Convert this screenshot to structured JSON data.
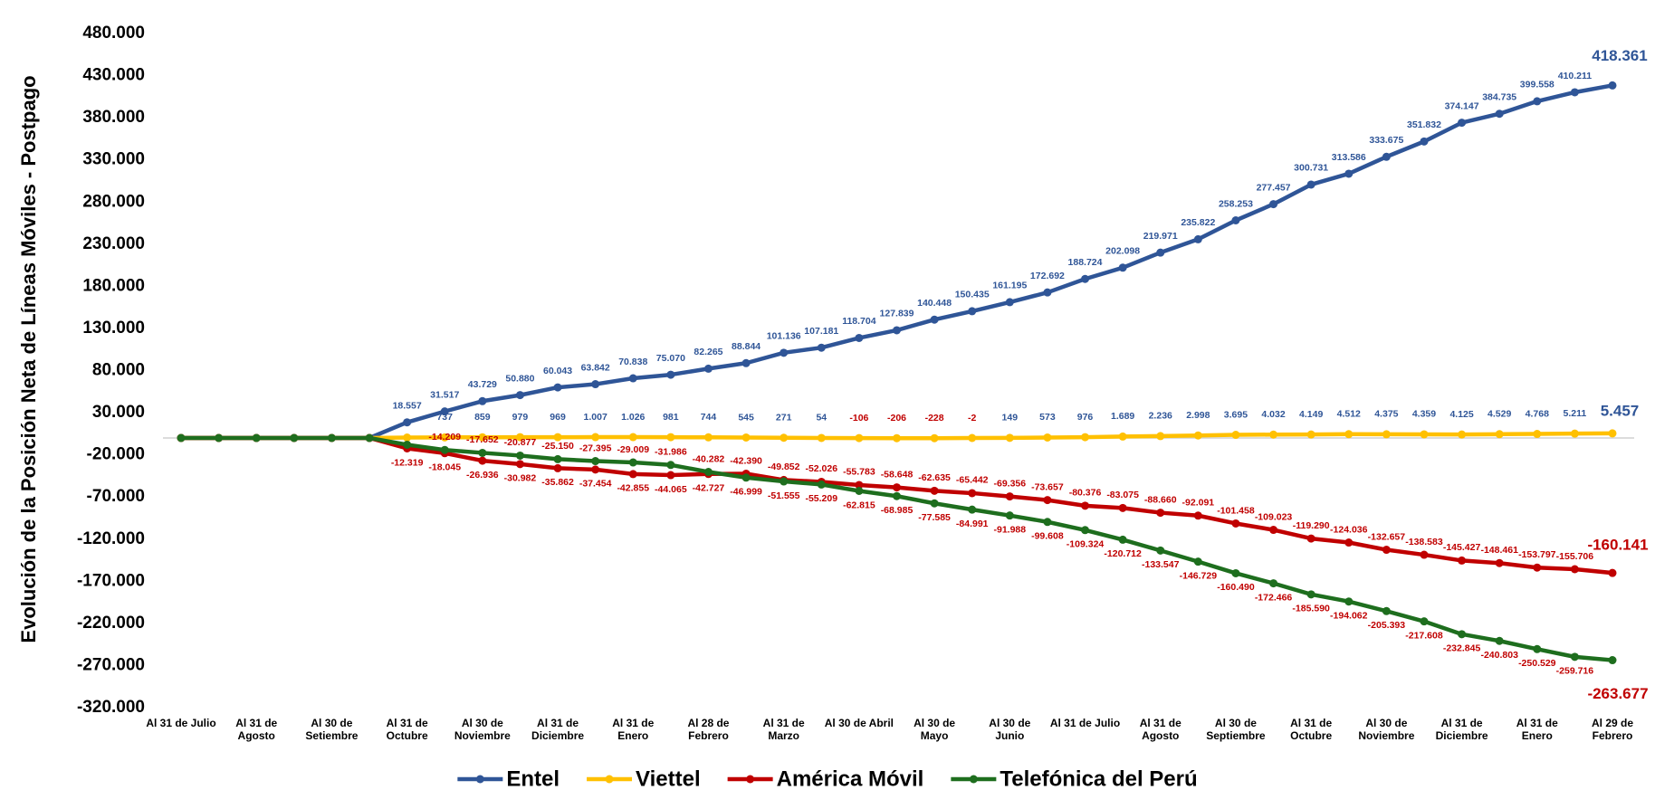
{
  "chart_data": {
    "type": "line",
    "y_label": "Evolución de la Posición Neta de Líneas Móviles - Postpago",
    "categories": [
      "Al 31 de Julio",
      null,
      "Al 31 de Agosto",
      null,
      "Al 30 de Setiembre",
      null,
      "Al 31 de Octubre",
      null,
      "Al 30 de Noviembre",
      null,
      "Al 31 de Diciembre",
      null,
      "Al 31 de Enero",
      null,
      "Al 28 de Febrero",
      null,
      "Al 31 de Marzo",
      null,
      "Al 30 de Abril",
      null,
      "Al 30 de Mayo",
      null,
      "Al 30 de Junio",
      null,
      "Al 31 de Julio",
      null,
      "Al 31 de Agosto",
      null,
      "Al 30 de Septiembre",
      null,
      "Al 31 de Octubre",
      null,
      "Al 30 de Noviembre",
      null,
      "Al 31 de Diciembre",
      null,
      "Al 31 de Enero",
      null,
      "Al 29 de Febrero"
    ],
    "ylim": [
      -320000,
      480000
    ],
    "yticks": [
      {
        "value": -320000,
        "label": "-320.000"
      },
      {
        "value": -270000,
        "label": "-270.000"
      },
      {
        "value": -220000,
        "label": "-220.000"
      },
      {
        "value": -170000,
        "label": "-170.000"
      },
      {
        "value": -120000,
        "label": "-120.000"
      },
      {
        "value": -70000,
        "label": "-70.000"
      },
      {
        "value": -20000,
        "label": "-20.000"
      },
      {
        "value": 30000,
        "label": "30.000"
      },
      {
        "value": 80000,
        "label": "80.000"
      },
      {
        "value": 130000,
        "label": "130.000"
      },
      {
        "value": 180000,
        "label": "180.000"
      },
      {
        "value": 230000,
        "label": "230.000"
      },
      {
        "value": 280000,
        "label": "280.000"
      },
      {
        "value": 330000,
        "label": "330.000"
      },
      {
        "value": 380000,
        "label": "380.000"
      },
      {
        "value": 430000,
        "label": "430.000"
      },
      {
        "value": 480000,
        "label": "480.000"
      }
    ],
    "grid": false,
    "legend": "bottom",
    "series": [
      {
        "name": "Entel",
        "color": "#2f5597",
        "label_color": "#2f5597",
        "values": [
          0,
          0,
          0,
          0,
          0,
          0,
          18557,
          31517,
          43729,
          50880,
          60043,
          63842,
          70838,
          75070,
          82265,
          88844,
          101136,
          107181,
          118704,
          127839,
          140448,
          150435,
          161195,
          172692,
          188724,
          202098,
          219971,
          235822,
          258253,
          277457,
          300731,
          313586,
          333675,
          351832,
          374147,
          384735,
          399558,
          410211,
          418361
        ],
        "value_labels": [
          null,
          null,
          null,
          null,
          null,
          null,
          "18.557",
          "31.517",
          "43.729",
          "50.880",
          "60.043",
          "63.842",
          "70.838",
          "75.070",
          "82.265",
          "88.844",
          "101.136",
          "107.181",
          "118.704",
          "127.839",
          "140.448",
          "150.435",
          "161.195",
          "172.692",
          "188.724",
          "202.098",
          "219.971",
          "235.822",
          "258.253",
          "277.457",
          "300.731",
          "313.586",
          "333.675",
          "351.832",
          "374.147",
          "384.735",
          "399.558",
          "410.211",
          "418.361"
        ]
      },
      {
        "name": "Viettel",
        "color": "#ffc000",
        "label_color": "#2f5597",
        "values": [
          0,
          0,
          0,
          0,
          0,
          0,
          500,
          737,
          859,
          979,
          969,
          1007,
          1026,
          981,
          744,
          545,
          271,
          54,
          -106,
          -206,
          -228,
          -2,
          149,
          573,
          976,
          1689,
          2236,
          2998,
          3695,
          4032,
          4149,
          4512,
          4375,
          4359,
          4125,
          4529,
          4768,
          5211,
          5457
        ],
        "value_labels": [
          null,
          null,
          null,
          null,
          null,
          null,
          null,
          "737",
          "859",
          "979",
          "969",
          "1.007",
          "1.026",
          "981",
          "744",
          "545",
          "271",
          "54",
          "-106",
          "-206",
          "-228",
          "-2",
          "149",
          "573",
          "976",
          "1.689",
          "2.236",
          "2.998",
          "3.695",
          "4.032",
          "4.149",
          "4.512",
          "4.375",
          "4.359",
          "4.125",
          "4.529",
          "4.768",
          "5.211",
          "5.457"
        ]
      },
      {
        "name": "América Móvil",
        "color": "#c00000",
        "label_color": "#c00000",
        "values": [
          0,
          0,
          0,
          0,
          0,
          0,
          -12319,
          -18045,
          -26936,
          -30982,
          -35862,
          -37454,
          -42855,
          -44065,
          -42727,
          -42390,
          -49852,
          -52026,
          -55783,
          -58648,
          -62635,
          -65442,
          -69356,
          -73657,
          -80376,
          -83075,
          -88660,
          -92091,
          -101458,
          -109023,
          -119290,
          -124036,
          -132657,
          -138583,
          -145427,
          -148461,
          -153797,
          -155706,
          -160141
        ],
        "value_labels": [
          null,
          null,
          null,
          null,
          null,
          null,
          "-12.319",
          "-18.045",
          "-26.936",
          "-30.982",
          "-35.862",
          "-37.454",
          "-42.855",
          "-44.065",
          "-42.727",
          "-42.390",
          "-49.852",
          "-52.026",
          "-55.783",
          "-58.648",
          "-62.635",
          "-65.442",
          "-69.356",
          "-73.657",
          "-80.376",
          "-83.075",
          "-88.660",
          "-92.091",
          "-101.458",
          "-109.023",
          "-119.290",
          "-124.036",
          "-132.657",
          "-138.583",
          "-145.427",
          "-148.461",
          "-153.797",
          "-155.706",
          "-160.141"
        ]
      },
      {
        "name": "Telefónica del Perú",
        "color": "#1e6e1e",
        "label_color": "#c00000",
        "values": [
          0,
          0,
          0,
          0,
          0,
          0,
          -8000,
          -14209,
          -17652,
          -20877,
          -25150,
          -27395,
          -29009,
          -31986,
          -40282,
          -46999,
          -51555,
          -55209,
          -62815,
          -68985,
          -77585,
          -84991,
          -91988,
          -99608,
          -109324,
          -120712,
          -133547,
          -146729,
          -160490,
          -172466,
          -185590,
          -194062,
          -205393,
          -217608,
          -232845,
          -240803,
          -250529,
          -259716,
          -263677
        ],
        "value_labels": [
          null,
          null,
          null,
          null,
          null,
          null,
          null,
          "-14.209",
          "-17.652",
          "-20.877",
          "-25.150",
          "-27.395",
          "-29.009",
          "-31.986",
          "-40.282",
          "-46.999",
          "-51.555",
          "-55.209",
          "-62.815",
          "-68.985",
          "-77.585",
          "-84.991",
          "-91.988",
          "-99.608",
          "-109.324",
          "-120.712",
          "-133.547",
          "-146.729",
          "-160.490",
          "-172.466",
          "-185.590",
          "-194.062",
          "-205.393",
          "-217.608",
          "-232.845",
          "-240.803",
          "-250.529",
          "-259.716",
          "-263.677"
        ]
      }
    ]
  }
}
